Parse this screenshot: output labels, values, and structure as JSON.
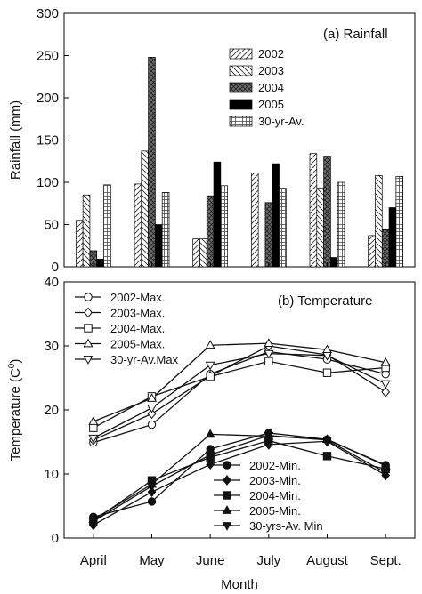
{
  "chart_data": [
    {
      "type": "bar",
      "title": "(a) Rainfall",
      "ylabel": "Rainfall (mm)",
      "xlabel": "",
      "ylim": [
        0,
        300
      ],
      "yticks": [
        0,
        50,
        100,
        150,
        200,
        250,
        300
      ],
      "categories": [
        "April",
        "May",
        "June",
        "July",
        "August",
        "Sept."
      ],
      "legend_position": "top-right",
      "grid": false,
      "series": [
        {
          "name": "2002",
          "pattern": "diag-right",
          "values": [
            55,
            98,
            33,
            111,
            134,
            37
          ]
        },
        {
          "name": "2003",
          "pattern": "diag-left",
          "values": [
            85,
            137,
            33,
            0,
            93,
            108
          ]
        },
        {
          "name": "2004",
          "pattern": "crosshatch-dark",
          "values": [
            19,
            248,
            84,
            76,
            131,
            44
          ]
        },
        {
          "name": "2005",
          "pattern": "solid-black",
          "values": [
            9,
            50,
            124,
            122,
            11,
            70
          ]
        },
        {
          "name": "30-yr-Av.",
          "pattern": "grid",
          "values": [
            97,
            88,
            96,
            93,
            100,
            107
          ]
        }
      ]
    },
    {
      "type": "line",
      "title": "(b) Temperature",
      "ylabel": "Temperature (C0)",
      "ylabel_main": "Temperature (C",
      "ylabel_sup": "0",
      "ylabel_close": ")",
      "xlabel": "Month",
      "ylim": [
        0,
        40
      ],
      "yticks": [
        0,
        10,
        20,
        30,
        40
      ],
      "categories": [
        "April",
        "May",
        "June",
        "July",
        "August",
        "Sept."
      ],
      "grid": false,
      "legend_max_position": "top-left",
      "legend_min_position": "bottom-right",
      "series_max": [
        {
          "name": "2002-Max.",
          "marker": "circle-open",
          "values": [
            14.9,
            17.7,
            25.6,
            29.1,
            27.9,
            25.6
          ]
        },
        {
          "name": "2003-Max.",
          "marker": "diamond-open",
          "values": [
            15.3,
            19.4,
            25.3,
            30.0,
            28.6,
            22.8
          ]
        },
        {
          "name": "2004-Max.",
          "marker": "square-open",
          "values": [
            17.2,
            22.1,
            25.2,
            27.6,
            25.8,
            26.6
          ]
        },
        {
          "name": "2005-Max.",
          "marker": "triangle-up-open",
          "values": [
            18.2,
            21.8,
            30.1,
            30.4,
            29.4,
            27.4
          ]
        },
        {
          "name": "30-yr-Av.Max",
          "marker": "triangle-down-open",
          "values": [
            15.6,
            20.3,
            27.0,
            28.8,
            28.5,
            24.1
          ]
        }
      ],
      "series_min": [
        {
          "name": "2002-Min.",
          "marker": "circle-filled",
          "values": [
            3.3,
            5.7,
            13.9,
            16.4,
            15.4,
            11.4
          ]
        },
        {
          "name": "2003-Min.",
          "marker": "diamond-filled",
          "values": [
            2.0,
            7.2,
            11.5,
            14.6,
            15.1,
            9.8
          ]
        },
        {
          "name": "2004-Min.",
          "marker": "square-filled",
          "values": [
            2.7,
            9.0,
            12.6,
            15.2,
            12.8,
            10.8
          ]
        },
        {
          "name": "2005-Min.",
          "marker": "triangle-up-filled",
          "values": [
            2.9,
            8.4,
            16.2,
            15.9,
            15.4,
            11.3
          ]
        },
        {
          "name": "30-yrs-Av. Min",
          "marker": "triangle-down-filled",
          "values": [
            2.6,
            8.1,
            13.0,
            16.0,
            15.3,
            10.2
          ]
        }
      ]
    }
  ]
}
